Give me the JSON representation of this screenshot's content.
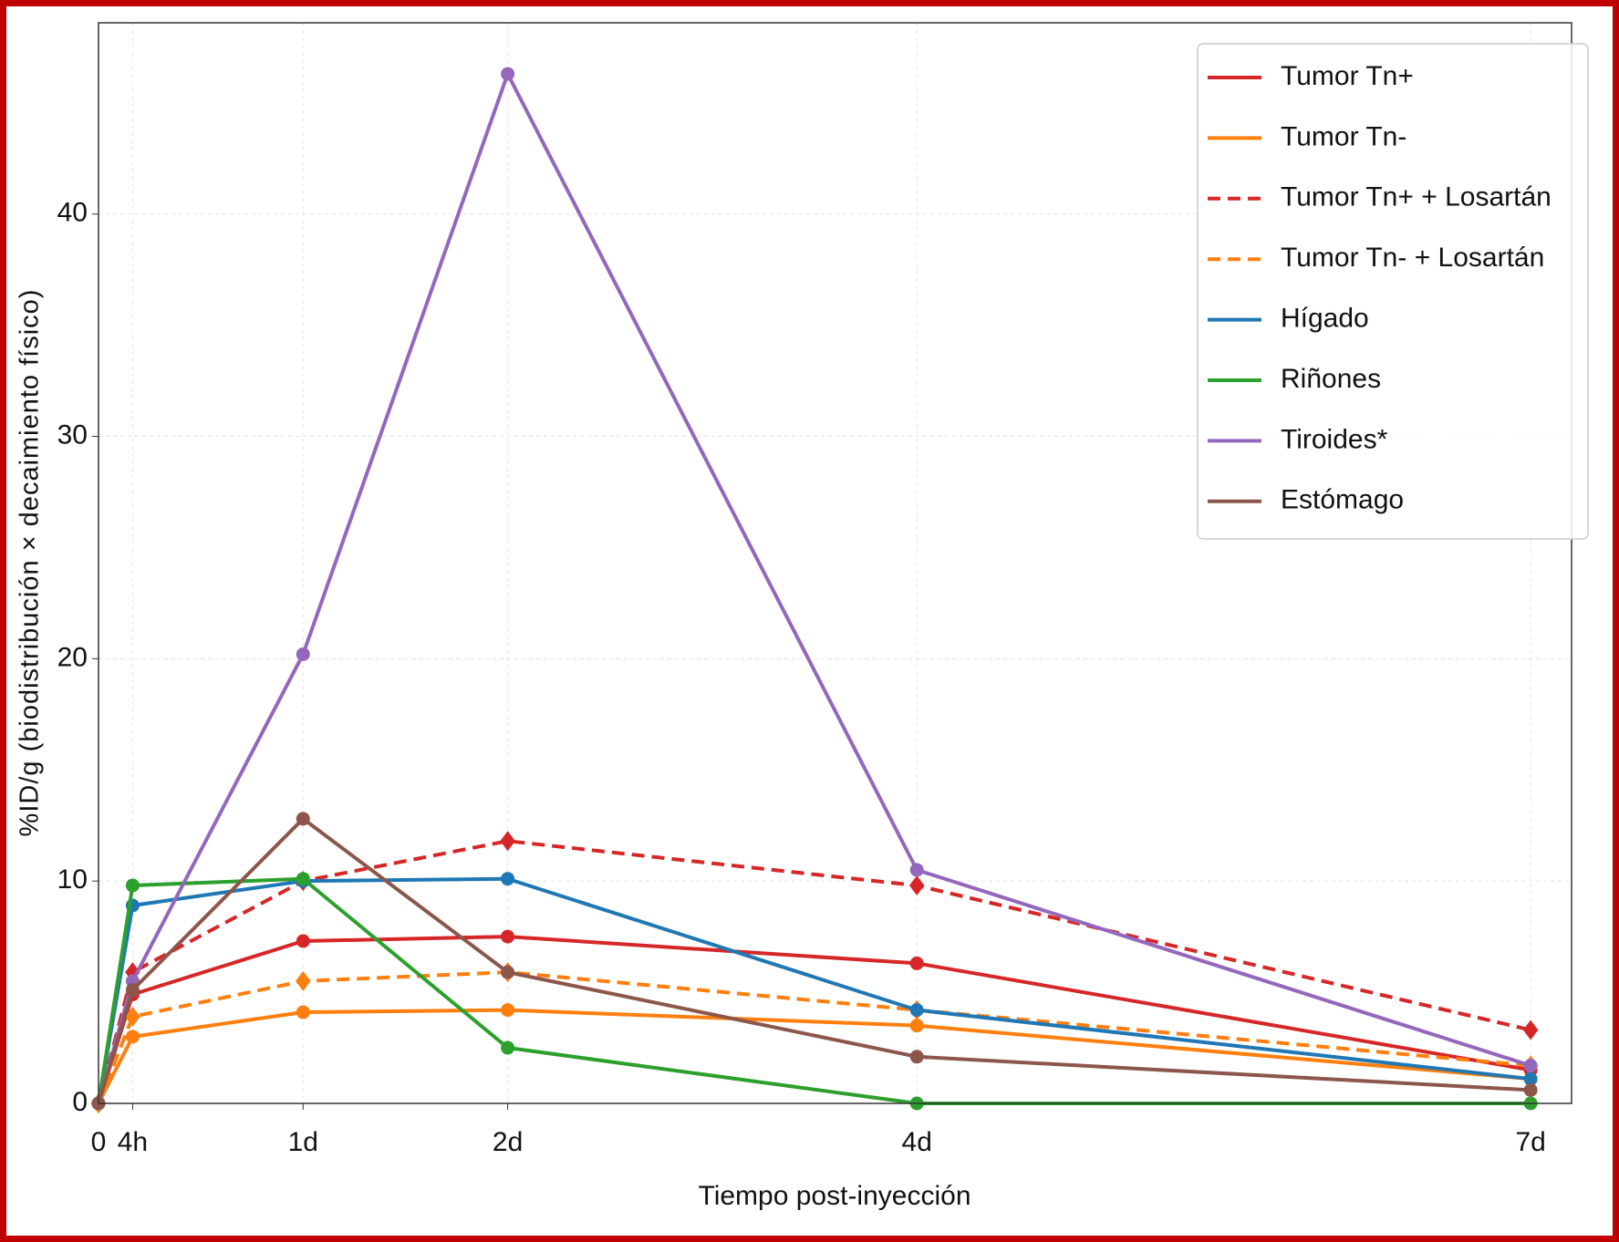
{
  "chart_data": {
    "type": "line",
    "x_label": "Tiempo post-inyección",
    "y_label": "%ID/g (biodistribución × decaimiento físico)",
    "x": [
      0,
      0.1667,
      1,
      2,
      4,
      7
    ],
    "xlim": [
      0,
      7.2
    ],
    "xticks": [
      0,
      {
        "value": 0.1667,
        "label": "4h"
      },
      {
        "value": 1,
        "label": "1d"
      },
      {
        "value": 2,
        "label": "2d"
      },
      {
        "value": 4,
        "label": "4d"
      },
      {
        "value": 7,
        "label": "7d"
      }
    ],
    "ylim": [
      0,
      48.6
    ],
    "yticks": [
      0,
      10,
      20,
      30,
      40
    ],
    "grid": true,
    "legend": "upper right",
    "series": [
      {
        "name": "Tumor Tn+",
        "color": "#d62728",
        "linestyle": "solid",
        "marker": "circle",
        "values": [
          0,
          4.9,
          7.3,
          7.5,
          6.3,
          1.5
        ]
      },
      {
        "name": "Tumor Tn-",
        "color": "#ff7f0e",
        "linestyle": "solid",
        "marker": "circle",
        "values": [
          0,
          3.0,
          4.1,
          4.2,
          3.5,
          1.1
        ]
      },
      {
        "name": "Tumor Tn+ + Losartán",
        "color": "#d62728",
        "linestyle": "dashed",
        "marker": "diamond",
        "values": [
          0,
          5.9,
          10.0,
          11.8,
          9.8,
          3.3
        ]
      },
      {
        "name": "Tumor Tn- + Losartán",
        "color": "#ff7f0e",
        "linestyle": "dashed",
        "marker": "diamond",
        "values": [
          0,
          3.9,
          5.5,
          5.9,
          4.2,
          1.7
        ]
      },
      {
        "name": "Hígado",
        "color": "#1f77b4",
        "linestyle": "solid",
        "marker": "circle",
        "values": [
          0,
          8.9,
          10.0,
          10.1,
          4.2,
          1.1
        ]
      },
      {
        "name": "Riñones",
        "color": "#2ca02c",
        "linestyle": "solid",
        "marker": "circle",
        "values": [
          0,
          9.8,
          10.1,
          2.5,
          0,
          0
        ]
      },
      {
        "name": "Tiroides*",
        "color": "#9467bd",
        "linestyle": "solid",
        "marker": "circle",
        "values": [
          0,
          5.5,
          20.2,
          46.3,
          10.5,
          1.7
        ]
      },
      {
        "name": "Estómago",
        "color": "#8c564b",
        "linestyle": "solid",
        "marker": "circle",
        "values": [
          0,
          5.1,
          12.8,
          5.9,
          2.1,
          0.6
        ]
      }
    ]
  }
}
